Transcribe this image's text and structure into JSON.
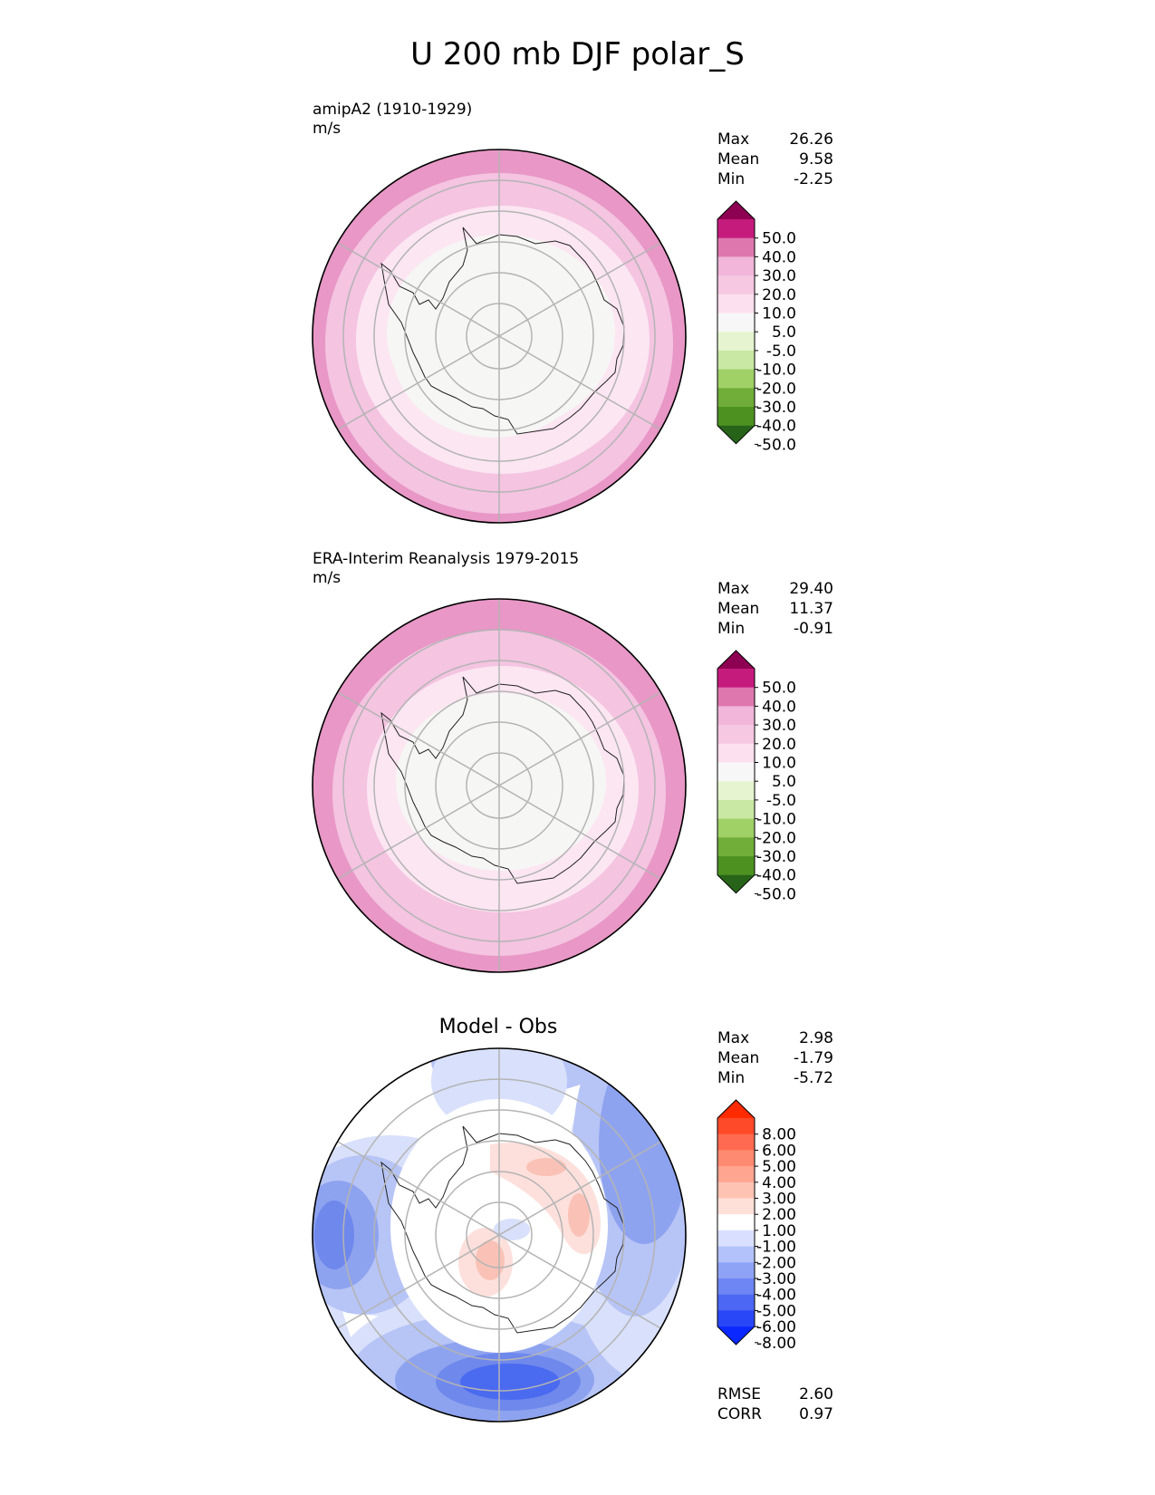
{
  "title": "U 200 mb DJF polar_S",
  "panels": [
    {
      "id": "test",
      "title": "amipA2 (1910-1929)",
      "units": "m/s",
      "stats": [
        {
          "label": "Max",
          "value": "26.26"
        },
        {
          "label": "Mean",
          "value": "9.58"
        },
        {
          "label": "Min",
          "value": "-2.25"
        }
      ],
      "fills": [
        "#e897c6",
        "#f4c4e1",
        "#fce6f2",
        "#f6f6f4"
      ],
      "colorbar": {
        "ticks": [
          "50.0",
          "40.0",
          "30.0",
          "20.0",
          "10.0",
          "5.0",
          "-5.0",
          "-10.0",
          "-20.0",
          "-30.0",
          "-40.0",
          "-50.0"
        ],
        "colors": [
          "#8e0152",
          "#c51b7d",
          "#de77ae",
          "#f1b6da",
          "#f7c8e2",
          "#fde0ef",
          "#f7f7f7",
          "#e6f5d0",
          "#c9e8a3",
          "#9fd167",
          "#70ad39",
          "#4d9221",
          "#276419"
        ]
      }
    },
    {
      "id": "ref",
      "title": "ERA-Interim Reanalysis 1979-2015",
      "units": "m/s",
      "stats": [
        {
          "label": "Max",
          "value": "29.40"
        },
        {
          "label": "Mean",
          "value": "11.37"
        },
        {
          "label": "Min",
          "value": "-0.91"
        }
      ],
      "fills": [
        "#e897c6",
        "#f4c4e1",
        "#fce6f2",
        "#f6f6f4"
      ],
      "colorbar": {
        "ticks": [
          "50.0",
          "40.0",
          "30.0",
          "20.0",
          "10.0",
          "5.0",
          "-5.0",
          "-10.0",
          "-20.0",
          "-30.0",
          "-40.0",
          "-50.0"
        ],
        "colors": [
          "#8e0152",
          "#c51b7d",
          "#de77ae",
          "#f1b6da",
          "#f7c8e2",
          "#fde0ef",
          "#f7f7f7",
          "#e6f5d0",
          "#c9e8a3",
          "#9fd167",
          "#70ad39",
          "#4d9221",
          "#276419"
        ]
      }
    },
    {
      "id": "diff",
      "title": "Model - Obs",
      "stats": [
        {
          "label": "Max",
          "value": "2.98"
        },
        {
          "label": "Mean",
          "value": "-1.79"
        },
        {
          "label": "Min",
          "value": "-5.72"
        }
      ],
      "metrics": [
        {
          "label": "RMSE",
          "value": "2.60"
        },
        {
          "label": "CORR",
          "value": "0.97"
        }
      ],
      "fills": [
        "#d9e0fb",
        "#b7c4f6",
        "#8ea3ef",
        "#6f88ec",
        "#4a6af0",
        "#fde0dc",
        "#fac2b6"
      ],
      "colorbar": {
        "ticks": [
          "8.00",
          "6.00",
          "5.00",
          "4.00",
          "3.00",
          "2.00",
          "1.00",
          "-1.00",
          "-2.00",
          "-3.00",
          "-4.00",
          "-5.00",
          "-6.00",
          "-8.00"
        ],
        "colors": [
          "#ff2a00",
          "#ff4a2a",
          "#ff6a50",
          "#ff8a72",
          "#ffa590",
          "#ffc3b4",
          "#ffe0d8",
          "#ffffff",
          "#d9e0ff",
          "#b4c2fb",
          "#8fa3f6",
          "#6e86f3",
          "#4b67f3",
          "#2a47f7",
          "#0a28ff"
        ]
      }
    }
  ]
}
